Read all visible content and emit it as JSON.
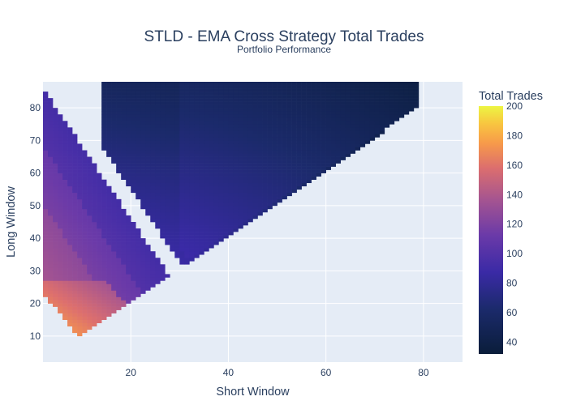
{
  "chart_data": {
    "type": "heatmap",
    "title": "STLD - EMA Cross Strategy Total Trades",
    "subtitle": "Portfolio Performance",
    "xlabel": "Short Window",
    "ylabel": "Long Window",
    "xlim": [
      2,
      88
    ],
    "ylim": [
      2,
      88
    ],
    "x_ticks": [
      20,
      40,
      60,
      80
    ],
    "y_ticks": [
      10,
      20,
      30,
      40,
      50,
      60,
      70,
      80
    ],
    "colorbar": {
      "title": "Total Trades",
      "range": [
        32,
        200
      ],
      "ticks": [
        40,
        60,
        80,
        100,
        120,
        140,
        160,
        180,
        200
      ],
      "colors": [
        "#0d0887",
        "#46039f",
        "#7201a8",
        "#9c179e",
        "#bd3786",
        "#d8576b",
        "#ed7953",
        "#fb9f3a",
        "#fdca26",
        "#f0f921"
      ],
      "colorscale": [
        [
          0.0,
          "#0a1d3a"
        ],
        [
          0.18,
          "#1b2a6b"
        ],
        [
          0.33,
          "#3a2aa6"
        ],
        [
          0.48,
          "#6b3aa8"
        ],
        [
          0.62,
          "#a45491"
        ],
        [
          0.75,
          "#dc6e6e"
        ],
        [
          0.85,
          "#f79a4a"
        ],
        [
          0.93,
          "#f8c640"
        ],
        [
          1.0,
          "#edf542"
        ]
      ]
    },
    "regions": [
      {
        "name": "main-band",
        "x_range": [
          12,
          88
        ],
        "y_range": [
          2,
          88
        ],
        "values_range": [
          33,
          80
        ]
      },
      {
        "name": "band-2",
        "x_range": [
          9,
          36
        ],
        "y_range": [
          13,
          35
        ],
        "values_range": [
          90,
          110
        ]
      },
      {
        "name": "band-3",
        "x_range": [
          6,
          28
        ],
        "y_range": [
          8,
          40
        ],
        "values_range": [
          110,
          130
        ]
      },
      {
        "name": "low-corner",
        "x_range": [
          2,
          20
        ],
        "y_range": [
          2,
          26
        ],
        "values_range": [
          150,
          200
        ]
      }
    ]
  }
}
